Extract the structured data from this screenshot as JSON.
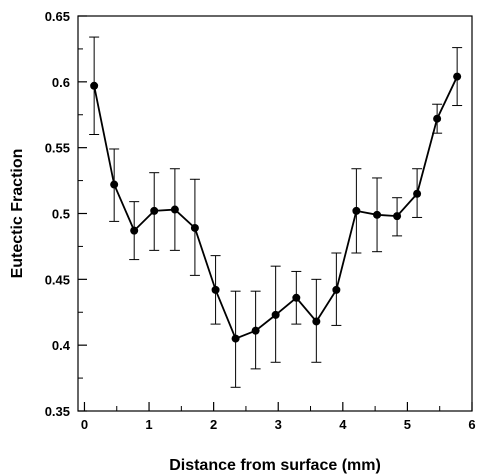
{
  "chart_data": {
    "type": "line",
    "xlabel": "Distance from surface (mm)",
    "ylabel": "Eutectic Fraction",
    "xlim": [
      -0.1,
      6
    ],
    "ylim": [
      0.35,
      0.65
    ],
    "xticks": [
      "0",
      "1",
      "2",
      "3",
      "4",
      "5",
      "6"
    ],
    "yticks": [
      "0.35",
      "0.4",
      "0.45",
      "0.5",
      "0.55",
      "0.6",
      "0.65"
    ],
    "grid": false,
    "legend": "none",
    "series": [
      {
        "points": [
          {
            "x": 0.15,
            "y": 0.597,
            "err_low": 0.56,
            "err_high": 0.634
          },
          {
            "x": 0.46,
            "y": 0.522,
            "err_low": 0.494,
            "err_high": 0.549
          },
          {
            "x": 0.77,
            "y": 0.487,
            "err_low": 0.465,
            "err_high": 0.509
          },
          {
            "x": 1.08,
            "y": 0.502,
            "err_low": 0.472,
            "err_high": 0.531
          },
          {
            "x": 1.4,
            "y": 0.503,
            "err_low": 0.472,
            "err_high": 0.534
          },
          {
            "x": 1.71,
            "y": 0.489,
            "err_low": 0.453,
            "err_high": 0.526
          },
          {
            "x": 2.03,
            "y": 0.442,
            "err_low": 0.416,
            "err_high": 0.468
          },
          {
            "x": 2.34,
            "y": 0.405,
            "err_low": 0.368,
            "err_high": 0.441
          },
          {
            "x": 2.65,
            "y": 0.411,
            "err_low": 0.382,
            "err_high": 0.441
          },
          {
            "x": 2.96,
            "y": 0.423,
            "err_low": 0.387,
            "err_high": 0.46
          },
          {
            "x": 3.28,
            "y": 0.436,
            "err_low": 0.416,
            "err_high": 0.456
          },
          {
            "x": 3.59,
            "y": 0.418,
            "err_low": 0.387,
            "err_high": 0.45
          },
          {
            "x": 3.9,
            "y": 0.442,
            "err_low": 0.415,
            "err_high": 0.47
          },
          {
            "x": 4.21,
            "y": 0.502,
            "err_low": 0.47,
            "err_high": 0.534
          },
          {
            "x": 4.53,
            "y": 0.499,
            "err_low": 0.471,
            "err_high": 0.527
          },
          {
            "x": 4.84,
            "y": 0.498,
            "err_low": 0.483,
            "err_high": 0.512
          },
          {
            "x": 5.15,
            "y": 0.515,
            "err_low": 0.497,
            "err_high": 0.534
          },
          {
            "x": 5.46,
            "y": 0.572,
            "err_low": 0.561,
            "err_high": 0.583
          },
          {
            "x": 5.77,
            "y": 0.604,
            "err_low": 0.582,
            "err_high": 0.626
          }
        ]
      }
    ]
  },
  "colors": {
    "line": "#000000",
    "marker": "#000000",
    "errorbar": "#000000",
    "axis": "#000000",
    "background": "#ffffff"
  }
}
